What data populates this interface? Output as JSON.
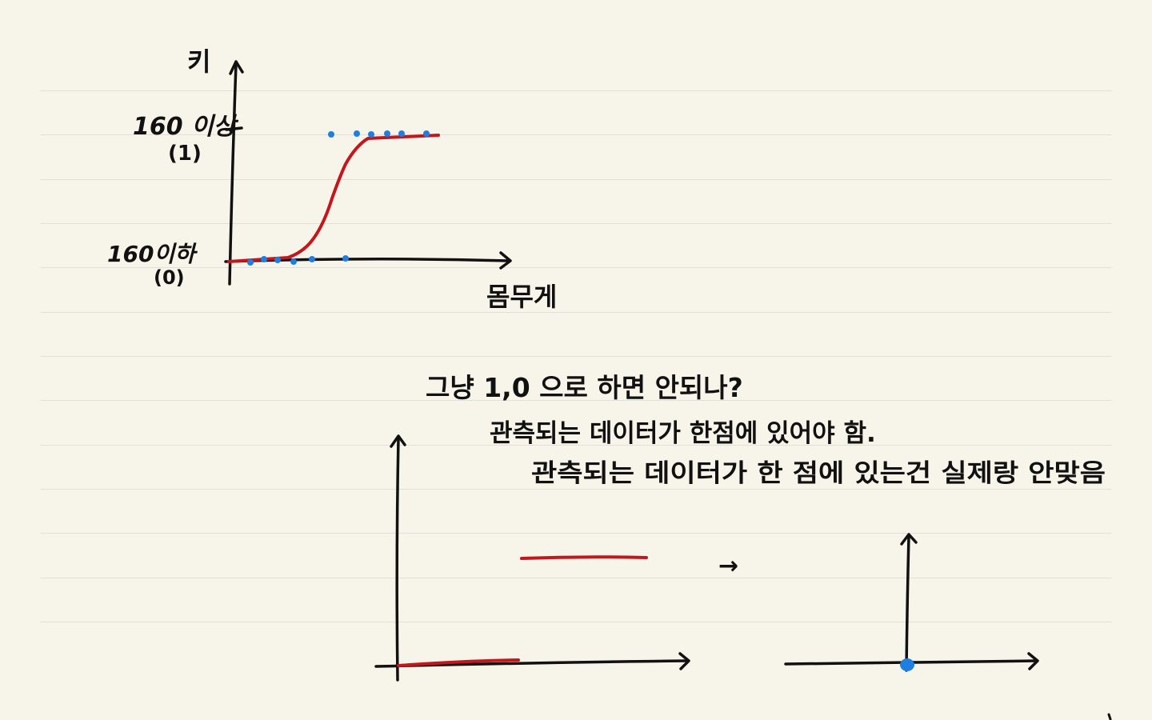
{
  "colors": {
    "paper": "#f7f5ea",
    "rule": "#e1e0d8",
    "ink": "#111111",
    "curve": "#c4161c",
    "points": "#1e7fe0"
  },
  "top_graph": {
    "y_axis_label": "키",
    "x_axis_label": "몸무게",
    "upper_tick_label": "160 이상",
    "upper_tick_value": "(1)",
    "lower_tick_label": "160이하",
    "lower_tick_value": "(0)"
  },
  "notes": {
    "line1": "그냥 1,0 으로 하면 안되나?",
    "line2": "관측되는 데이터가 한점에 있어야 함.",
    "line3": "관측되는 데이터가 한 점에 있는건 실제랑 안맞음"
  },
  "arrow_glyph": "→"
}
